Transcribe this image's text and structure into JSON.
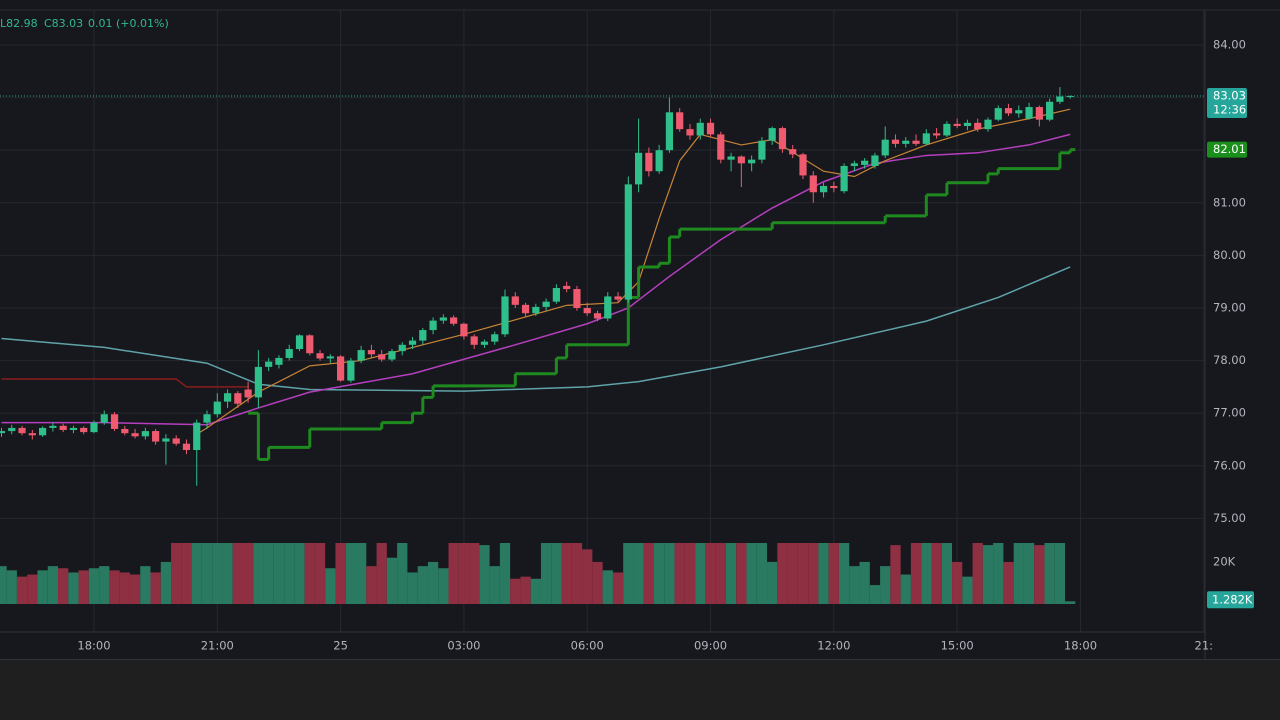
{
  "header": {
    "low": "L82.98",
    "close": "C83.03",
    "change": "0.01 (+0.01%)"
  },
  "chart_data": {
    "type": "candlestick",
    "up_color": "#2fbf8a",
    "down_color": "#ef5a6f",
    "volume_up_color": "#2a7a62",
    "volume_down_color": "#8e2f42",
    "xlim": [
      -0.146,
      117.12
    ],
    "xticks": [
      {
        "value": 9,
        "label": "18:00"
      },
      {
        "value": 21,
        "label": "21:00"
      },
      {
        "value": 33,
        "label": "25"
      },
      {
        "value": 45,
        "label": "03:00"
      },
      {
        "value": 57,
        "label": "06:00"
      },
      {
        "value": 69,
        "label": "09:00"
      },
      {
        "value": 81,
        "label": "12:00"
      },
      {
        "value": 93,
        "label": "15:00"
      },
      {
        "value": 105,
        "label": "18:00"
      },
      {
        "value": 117,
        "label": "21:"
      }
    ],
    "ylim": [
      72.84,
      84.665
    ],
    "yticks": [
      {
        "value": 75,
        "label": "75.00"
      },
      {
        "value": 76,
        "label": "76.00"
      },
      {
        "value": 77,
        "label": "77.00"
      },
      {
        "value": 78,
        "label": "78.00"
      },
      {
        "value": 79,
        "label": "79.00"
      },
      {
        "value": 80,
        "label": "80.00"
      },
      {
        "value": 81,
        "label": "81.00"
      },
      {
        "value": 82,
        "label": "82.00"
      },
      {
        "value": 83,
        "label": "83.00"
      },
      {
        "value": 84,
        "label": "84.00"
      }
    ],
    "y2lim": [
      0,
      29
    ],
    "y2ticks": [
      {
        "value": 20,
        "label": "20K"
      }
    ],
    "grid": true,
    "candles": [
      [
        76.62,
        76.72,
        76.55,
        76.66
      ],
      [
        76.66,
        76.78,
        76.6,
        76.72
      ],
      [
        76.72,
        76.76,
        76.58,
        76.62
      ],
      [
        76.62,
        76.68,
        76.5,
        76.58
      ],
      [
        76.58,
        76.75,
        76.55,
        76.72
      ],
      [
        76.72,
        76.82,
        76.65,
        76.76
      ],
      [
        76.76,
        76.8,
        76.64,
        76.68
      ],
      [
        76.68,
        76.76,
        76.62,
        76.72
      ],
      [
        76.72,
        76.75,
        76.6,
        76.64
      ],
      [
        76.64,
        76.86,
        76.62,
        76.82
      ],
      [
        76.82,
        77.05,
        76.78,
        76.98
      ],
      [
        76.98,
        77.02,
        76.66,
        76.7
      ],
      [
        76.7,
        76.76,
        76.58,
        76.62
      ],
      [
        76.62,
        76.7,
        76.52,
        76.56
      ],
      [
        76.56,
        76.72,
        76.5,
        76.66
      ],
      [
        76.66,
        76.7,
        76.4,
        76.46
      ],
      [
        76.46,
        76.6,
        76.02,
        76.52
      ],
      [
        76.52,
        76.58,
        76.38,
        76.42
      ],
      [
        76.42,
        76.5,
        76.22,
        76.3
      ],
      [
        76.3,
        76.88,
        75.62,
        76.82
      ],
      [
        76.82,
        77.05,
        76.7,
        76.98
      ],
      [
        76.98,
        77.38,
        76.92,
        77.22
      ],
      [
        77.22,
        77.45,
        77.1,
        77.38
      ],
      [
        77.38,
        77.42,
        77.1,
        77.18
      ],
      [
        77.45,
        77.6,
        77.2,
        77.3
      ],
      [
        77.3,
        78.2,
        77.1,
        77.88
      ],
      [
        77.88,
        78.05,
        77.8,
        77.98
      ],
      [
        77.92,
        78.1,
        77.85,
        78.05
      ],
      [
        78.05,
        78.3,
        78.0,
        78.22
      ],
      [
        78.22,
        78.5,
        78.18,
        78.48
      ],
      [
        78.48,
        78.5,
        78.1,
        78.14
      ],
      [
        78.14,
        78.2,
        78.0,
        78.04
      ],
      [
        78.04,
        78.12,
        77.95,
        78.08
      ],
      [
        78.08,
        78.1,
        77.6,
        77.62
      ],
      [
        77.62,
        78.05,
        77.58,
        78.0
      ],
      [
        78.0,
        78.28,
        77.95,
        78.2
      ],
      [
        78.2,
        78.3,
        78.05,
        78.12
      ],
      [
        78.12,
        78.2,
        77.98,
        78.02
      ],
      [
        78.02,
        78.22,
        77.98,
        78.18
      ],
      [
        78.18,
        78.35,
        78.1,
        78.3
      ],
      [
        78.3,
        78.45,
        78.22,
        78.38
      ],
      [
        78.38,
        78.62,
        78.3,
        78.58
      ],
      [
        78.58,
        78.82,
        78.5,
        78.76
      ],
      [
        78.76,
        78.88,
        78.7,
        78.82
      ],
      [
        78.82,
        78.86,
        78.66,
        78.7
      ],
      [
        78.7,
        78.72,
        78.4,
        78.46
      ],
      [
        78.46,
        78.5,
        78.22,
        78.3
      ],
      [
        78.3,
        78.4,
        78.24,
        78.36
      ],
      [
        78.36,
        78.55,
        78.3,
        78.5
      ],
      [
        78.5,
        79.35,
        78.45,
        79.22
      ],
      [
        79.22,
        79.3,
        79.0,
        79.06
      ],
      [
        79.06,
        79.1,
        78.82,
        78.9
      ],
      [
        78.9,
        79.08,
        78.85,
        79.02
      ],
      [
        79.02,
        79.18,
        78.95,
        79.12
      ],
      [
        79.12,
        79.45,
        79.08,
        79.38
      ],
      [
        79.42,
        79.5,
        79.3,
        79.36
      ],
      [
        79.36,
        79.42,
        78.95,
        79.0
      ],
      [
        79.0,
        79.1,
        78.85,
        78.9
      ],
      [
        78.9,
        78.95,
        78.75,
        78.8
      ],
      [
        78.8,
        79.3,
        78.75,
        79.22
      ],
      [
        79.22,
        79.3,
        79.1,
        79.16
      ],
      [
        79.16,
        81.5,
        79.1,
        81.35
      ],
      [
        81.35,
        82.6,
        81.2,
        81.95
      ],
      [
        81.95,
        82.05,
        81.5,
        81.6
      ],
      [
        81.6,
        82.1,
        81.55,
        82.0
      ],
      [
        82.0,
        83.0,
        81.95,
        82.72
      ],
      [
        82.72,
        82.8,
        82.35,
        82.4
      ],
      [
        82.4,
        82.5,
        82.2,
        82.28
      ],
      [
        82.28,
        82.6,
        82.2,
        82.52
      ],
      [
        82.52,
        82.6,
        82.25,
        82.3
      ],
      [
        82.3,
        82.35,
        81.75,
        81.82
      ],
      [
        81.82,
        81.95,
        81.6,
        81.88
      ],
      [
        81.88,
        81.9,
        81.3,
        81.75
      ],
      [
        81.75,
        81.9,
        81.6,
        81.82
      ],
      [
        81.82,
        82.25,
        81.75,
        82.18
      ],
      [
        82.18,
        82.45,
        82.1,
        82.42
      ],
      [
        82.42,
        82.45,
        81.95,
        82.02
      ],
      [
        82.02,
        82.1,
        81.85,
        81.92
      ],
      [
        81.92,
        81.95,
        81.45,
        81.52
      ],
      [
        81.52,
        81.6,
        81.0,
        81.2
      ],
      [
        81.2,
        81.38,
        81.1,
        81.32
      ],
      [
        81.32,
        81.4,
        81.2,
        81.28
      ],
      [
        81.22,
        81.75,
        81.18,
        81.7
      ],
      [
        81.7,
        81.8,
        81.6,
        81.75
      ],
      [
        81.72,
        81.85,
        81.65,
        81.8
      ],
      [
        81.7,
        81.95,
        81.65,
        81.9
      ],
      [
        81.9,
        82.45,
        81.85,
        82.2
      ],
      [
        82.2,
        82.3,
        82.05,
        82.12
      ],
      [
        82.12,
        82.25,
        82.05,
        82.18
      ],
      [
        82.18,
        82.3,
        82.08,
        82.12
      ],
      [
        82.12,
        82.4,
        82.1,
        82.32
      ],
      [
        82.32,
        82.42,
        82.22,
        82.28
      ],
      [
        82.28,
        82.55,
        82.25,
        82.5
      ],
      [
        82.5,
        82.6,
        82.42,
        82.46
      ],
      [
        82.46,
        82.58,
        82.38,
        82.52
      ],
      [
        82.52,
        82.6,
        82.35,
        82.4
      ],
      [
        82.4,
        82.62,
        82.35,
        82.58
      ],
      [
        82.58,
        82.85,
        82.55,
        82.8
      ],
      [
        82.8,
        82.88,
        82.65,
        82.7
      ],
      [
        82.7,
        82.85,
        82.62,
        82.76
      ],
      [
        82.6,
        82.9,
        82.58,
        82.82
      ],
      [
        82.82,
        82.85,
        82.45,
        82.58
      ],
      [
        82.58,
        82.98,
        82.55,
        82.92
      ],
      [
        82.92,
        83.2,
        82.88,
        83.02
      ],
      [
        83.02,
        83.04,
        82.98,
        83.03
      ]
    ],
    "volumes": [
      18,
      16,
      13,
      14,
      16,
      18,
      17,
      15,
      16,
      17,
      18,
      16,
      15,
      14,
      18,
      15,
      20,
      30,
      30,
      30,
      30,
      30,
      30,
      30,
      30,
      30,
      30,
      30,
      30,
      29,
      30,
      30,
      17,
      30,
      30,
      30,
      18,
      30,
      22,
      30,
      15,
      18,
      20,
      17,
      30,
      30,
      30,
      28,
      18,
      30,
      12,
      13,
      12,
      30,
      30,
      30,
      30,
      26,
      20,
      16,
      15,
      30,
      30,
      30,
      30,
      30,
      30,
      30,
      30,
      30,
      30,
      30,
      30,
      30,
      30,
      20,
      30,
      30,
      30,
      30,
      30,
      30,
      30,
      18,
      20,
      9,
      18,
      28,
      14,
      30,
      30,
      30,
      30,
      20,
      13,
      30,
      28,
      30,
      20,
      30,
      30,
      28,
      30,
      30,
      1.282
    ],
    "lines": [
      {
        "color": "#5fa3aa",
        "x": [
          0,
          10,
          20,
          25,
          30,
          45,
          57,
          62,
          70,
          80,
          90,
          97,
          104
        ],
        "values": [
          78.42,
          78.25,
          77.95,
          77.55,
          77.45,
          77.42,
          77.5,
          77.6,
          77.88,
          78.3,
          78.75,
          79.2,
          79.78
        ]
      },
      {
        "color": "#8a1c1c",
        "x": [
          0,
          17,
          18,
          24
        ],
        "values": [
          77.65,
          77.65,
          77.5,
          77.5
        ]
      },
      {
        "color": "#b53fbf",
        "x": [
          0,
          10,
          20,
          25,
          30,
          40,
          50,
          57,
          61,
          65,
          70,
          75,
          80,
          85,
          90,
          95,
          100,
          104
        ],
        "values": [
          76.82,
          76.82,
          76.78,
          77.1,
          77.4,
          77.75,
          78.3,
          78.7,
          79.0,
          79.6,
          80.3,
          80.9,
          81.4,
          81.75,
          81.9,
          81.95,
          82.1,
          82.3
        ]
      },
      {
        "color": "#c98436",
        "x": [
          19,
          20,
          25,
          30,
          35,
          45,
          55,
          60,
          62,
          64,
          66,
          68,
          72,
          75,
          80,
          83,
          86,
          90,
          95,
          100,
          104
        ],
        "values": [
          76.6,
          76.72,
          77.4,
          77.9,
          78.0,
          78.5,
          79.05,
          79.1,
          79.5,
          80.7,
          81.8,
          82.3,
          82.1,
          82.2,
          81.6,
          81.5,
          81.8,
          82.1,
          82.4,
          82.6,
          82.78
        ]
      }
    ],
    "step": {
      "color": "#1f8a1f",
      "x": [
        24,
        25,
        26,
        30,
        37,
        40,
        41,
        42,
        50,
        54,
        55,
        61,
        62,
        64,
        65,
        66,
        75,
        86,
        90,
        92,
        96,
        97,
        103,
        104
      ],
      "values": [
        77.0,
        76.12,
        76.35,
        76.7,
        76.82,
        77.0,
        77.3,
        77.52,
        77.75,
        78.05,
        78.3,
        79.2,
        79.78,
        79.85,
        80.35,
        80.5,
        80.62,
        80.75,
        81.15,
        81.38,
        81.55,
        81.65,
        81.95,
        82.01
      ]
    },
    "markers": [
      {
        "value": 83.03,
        "label": "83.03",
        "countdown": "12:36",
        "color": "#26a69a"
      },
      {
        "value": 82.01,
        "label": "82.01",
        "color": "#1b8f1b"
      }
    ],
    "y2_marker": {
      "value": 1.282,
      "label": "1.282K",
      "color": "#26a69a"
    }
  }
}
